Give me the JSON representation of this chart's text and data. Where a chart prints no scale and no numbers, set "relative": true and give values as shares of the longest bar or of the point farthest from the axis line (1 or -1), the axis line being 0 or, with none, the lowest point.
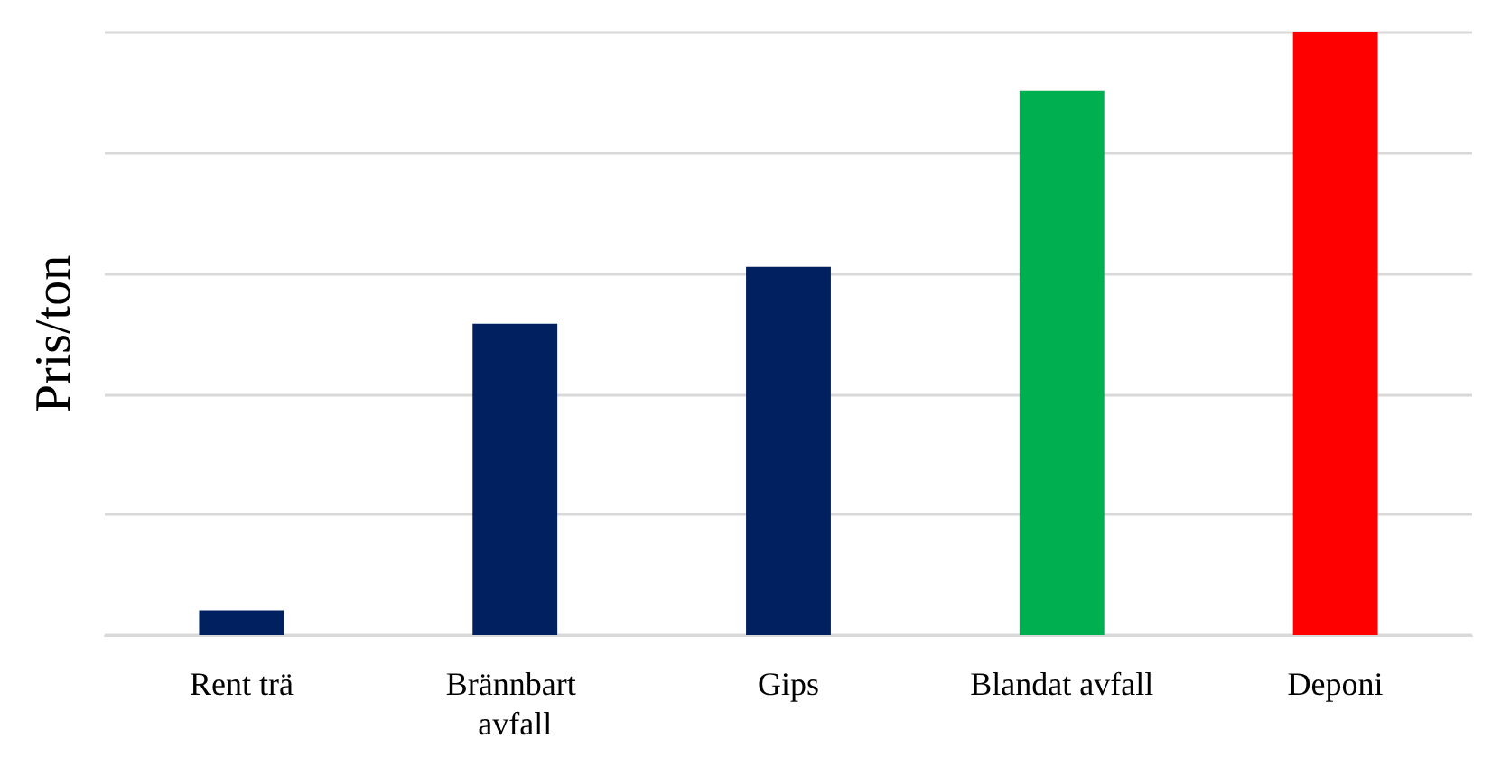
{
  "chart_data": {
    "type": "bar",
    "ylabel": "Pris/ton",
    "relative": true,
    "grid": true,
    "categories": [
      "Rent trä",
      "Brännbart avfall",
      "Gips",
      "Blandat avfall",
      "Deponi"
    ],
    "values": [
      0.041,
      0.517,
      0.611,
      0.903,
      1
    ],
    "colors": [
      "#002060",
      "#002060",
      "#002060",
      "#00b050",
      "#ff0000"
    ]
  }
}
